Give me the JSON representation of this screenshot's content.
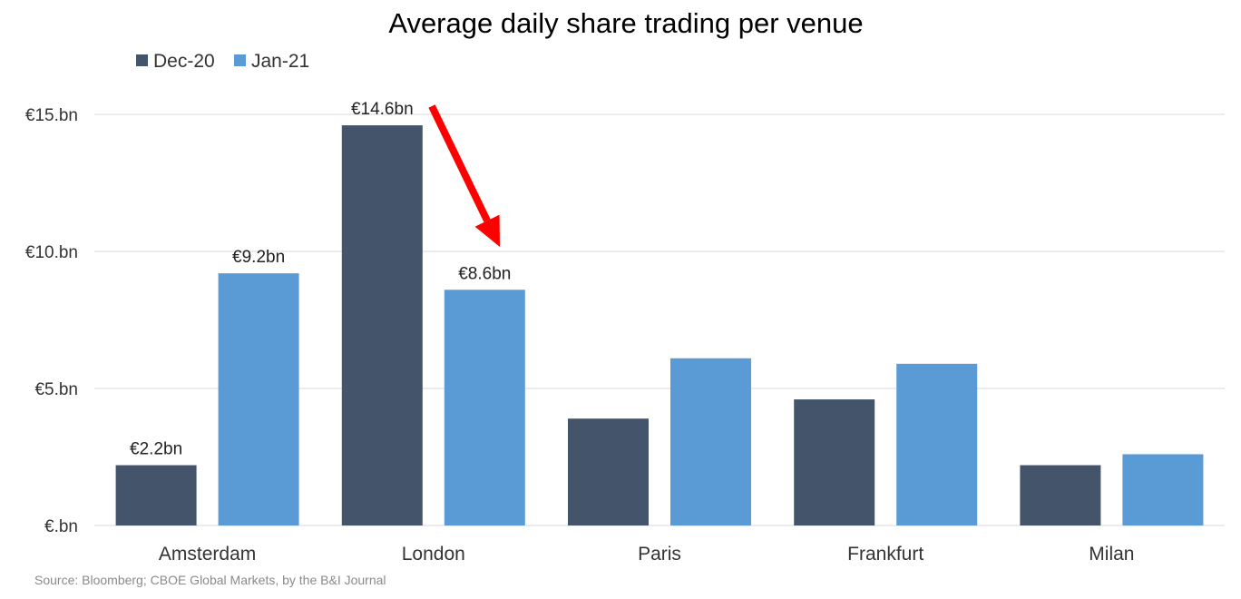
{
  "chart_data": {
    "type": "bar",
    "title": "Average daily share trading per venue",
    "categories": [
      "Amsterdam",
      "London",
      "Paris",
      "Frankfurt",
      "Milan"
    ],
    "series": [
      {
        "name": "Dec-20",
        "color": "#44546a",
        "values": [
          2.2,
          14.6,
          3.9,
          4.6,
          2.2
        ]
      },
      {
        "name": "Jan-21",
        "color": "#5b9bd5",
        "values": [
          9.2,
          8.6,
          6.1,
          5.9,
          2.6
        ]
      }
    ],
    "data_labels": [
      {
        "series": 0,
        "index": 0,
        "text": "€2.2bn"
      },
      {
        "series": 1,
        "index": 0,
        "text": "€9.2bn"
      },
      {
        "series": 0,
        "index": 1,
        "text": "€14.6bn"
      },
      {
        "series": 1,
        "index": 1,
        "text": "€8.6bn"
      }
    ],
    "yticks": [
      {
        "value": 0,
        "label": "€.bn"
      },
      {
        "value": 5,
        "label": "€5.bn"
      },
      {
        "value": 10,
        "label": "€10.bn"
      },
      {
        "value": 15,
        "label": "€15.bn"
      }
    ],
    "ylim": [
      0,
      15
    ],
    "grid": true,
    "legend_position": "top-left",
    "annotation": {
      "type": "arrow",
      "color": "#ff0000",
      "from": {
        "category": "London",
        "series": 0
      },
      "to": {
        "category": "London",
        "series": 1
      }
    },
    "source": "Source: Bloomberg; CBOE Global Markets, by the B&I Journal"
  }
}
